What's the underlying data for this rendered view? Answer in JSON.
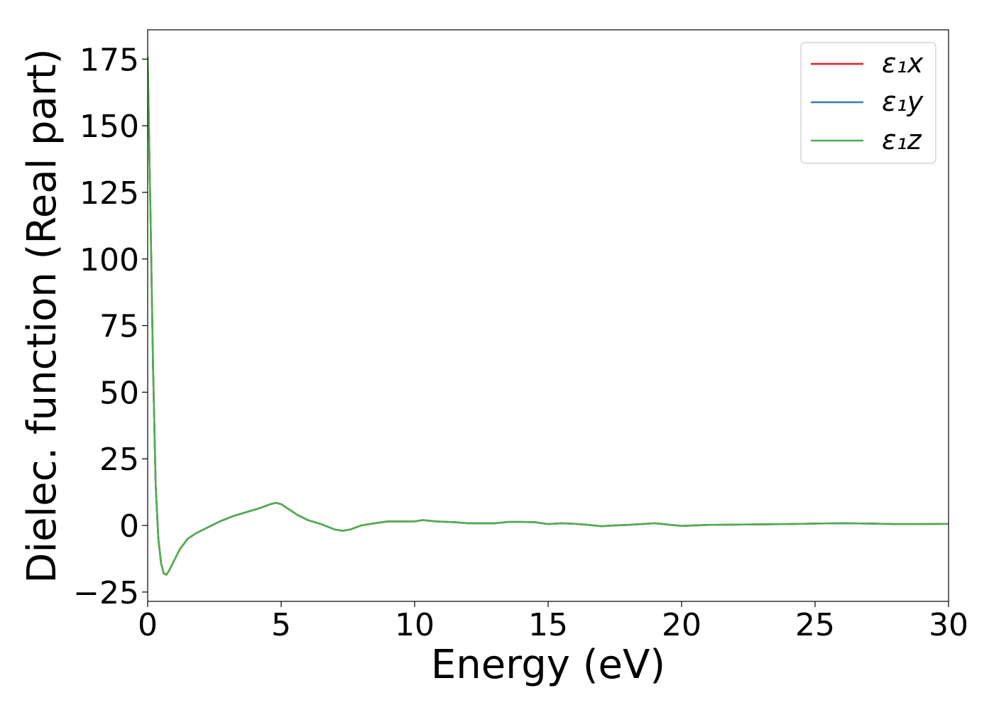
{
  "chart_data": {
    "type": "line",
    "xlabel": "Energy (eV)",
    "ylabel": "Dielec. function (Real part)",
    "x": [
      0,
      0.1,
      0.2,
      0.3,
      0.4,
      0.5,
      0.6,
      0.7,
      0.8,
      1.0,
      1.2,
      1.5,
      1.8,
      2.2,
      2.7,
      3.2,
      3.7,
      4.2,
      4.6,
      4.8,
      5.0,
      5.3,
      5.6,
      6.0,
      6.5,
      7.0,
      7.3,
      7.6,
      8.0,
      8.5,
      9.0,
      9.5,
      10.0,
      10.3,
      10.8,
      11.5,
      12.0,
      12.5,
      13.0,
      13.5,
      14.0,
      14.5,
      15.0,
      15.5,
      16.0,
      16.5,
      17.0,
      17.5,
      18.0,
      18.5,
      19.0,
      19.5,
      20.0,
      21.0,
      22.0,
      23.0,
      24.0,
      25.0,
      26.0,
      27.0,
      28.0,
      29.0,
      30.0
    ],
    "series": [
      {
        "name": "ε₁x",
        "color": "#e41a1c",
        "values": [
          176,
          120,
          60,
          15,
          -5,
          -14,
          -18,
          -18.5,
          -17,
          -13,
          -9,
          -5,
          -3,
          -1,
          1.5,
          3.5,
          5,
          6.5,
          8,
          8.5,
          8,
          6,
          4,
          2,
          0.5,
          -1.5,
          -2,
          -1.5,
          0,
          0.8,
          1.5,
          1.5,
          1.5,
          2,
          1.5,
          1.2,
          0.8,
          0.8,
          0.8,
          1.3,
          1.3,
          1.2,
          0.5,
          0.8,
          0.6,
          0.2,
          -0.3,
          0,
          0.2,
          0.5,
          0.8,
          0.3,
          -0.2,
          0.2,
          0.3,
          0.4,
          0.5,
          0.7,
          0.8,
          0.7,
          0.5,
          0.5,
          0.6
        ]
      },
      {
        "name": "ε₁y",
        "color": "#377eb8",
        "values": [
          176,
          120,
          60,
          15,
          -5,
          -14,
          -18,
          -18.5,
          -17,
          -13,
          -9,
          -5,
          -3,
          -1,
          1.5,
          3.5,
          5,
          6.5,
          8,
          8.5,
          8,
          6,
          4,
          2,
          0.5,
          -1.5,
          -2,
          -1.5,
          0,
          0.8,
          1.5,
          1.5,
          1.5,
          2,
          1.5,
          1.2,
          0.8,
          0.8,
          0.8,
          1.3,
          1.3,
          1.2,
          0.5,
          0.8,
          0.6,
          0.2,
          -0.3,
          0,
          0.2,
          0.5,
          0.8,
          0.3,
          -0.2,
          0.2,
          0.3,
          0.4,
          0.5,
          0.7,
          0.8,
          0.7,
          0.5,
          0.5,
          0.6
        ]
      },
      {
        "name": "ε₁z",
        "color": "#4daf4a",
        "values": [
          176,
          120,
          60,
          15,
          -5,
          -14,
          -18,
          -18.5,
          -17,
          -13,
          -9,
          -5,
          -3,
          -1,
          1.5,
          3.5,
          5,
          6.5,
          8,
          8.5,
          8,
          6,
          4,
          2,
          0.5,
          -1.5,
          -2,
          -1.5,
          0,
          0.8,
          1.5,
          1.5,
          1.5,
          2,
          1.5,
          1.2,
          0.8,
          0.8,
          0.8,
          1.3,
          1.3,
          1.2,
          0.5,
          0.8,
          0.6,
          0.2,
          -0.3,
          0,
          0.2,
          0.5,
          0.8,
          0.3,
          -0.2,
          0.2,
          0.3,
          0.4,
          0.5,
          0.7,
          0.8,
          0.7,
          0.5,
          0.5,
          0.6
        ]
      }
    ],
    "xlim": [
      0,
      30
    ],
    "xticks": [
      0,
      5,
      10,
      15,
      20,
      25,
      30
    ],
    "ylim": [
      -28.5,
      186
    ],
    "yticks": [
      {
        "value": -25,
        "label": "−25"
      },
      0,
      25,
      50,
      75,
      100,
      125,
      150,
      175
    ],
    "legend": "upper right"
  }
}
